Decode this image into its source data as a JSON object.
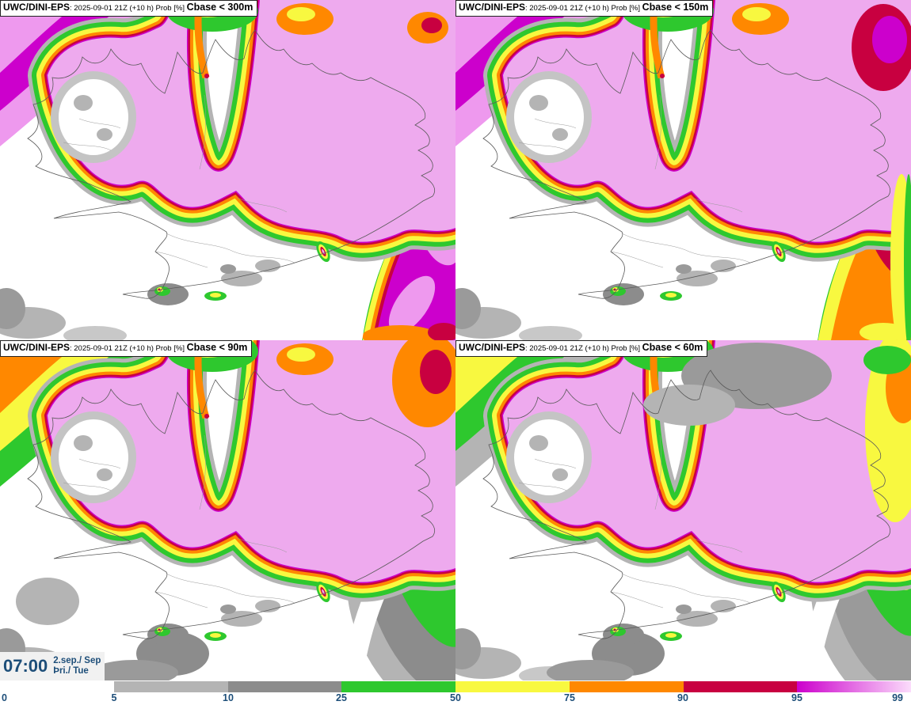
{
  "panels": [
    {
      "model": "UWC/DINI-EPS",
      "run": ": 2025-09-01 21Z (+10 h) Prob [%] ",
      "threshold": "Cbase < 300m",
      "nw": [
        "#ee99ee",
        "#cc00cc",
        "#ee99ee"
      ],
      "se_rings": [
        [
          "#b4b4b4",
          58
        ],
        [
          "#2ec82e",
          46
        ],
        [
          "#f8f840",
          32
        ],
        [
          "#ff8800",
          18
        ],
        [
          "#c80040",
          8
        ]
      ],
      "se_core": "#cc00cc",
      "se_patches": [
        [
          520,
          385,
          42,
          20,
          -55,
          "#ee99ee"
        ],
        [
          556,
          295,
          24,
          42,
          -20,
          "#ee99ee"
        ],
        [
          505,
          425,
          48,
          14,
          0,
          "#ff8800"
        ],
        [
          560,
          420,
          20,
          12,
          0,
          "#c80040"
        ]
      ],
      "overlays": [
        [
          540,
          35,
          26,
          20,
          "#ff8800"
        ],
        [
          545,
          32,
          13,
          10,
          "#c80040"
        ]
      ],
      "extra_gray": []
    },
    {
      "model": "UWC/DINI-EPS",
      "run": ": 2025-09-01 21Z (+10 h) Prob [%] ",
      "threshold": "Cbase < 150m",
      "nw": [
        "#ee99ee",
        "#cc00cc",
        "#ee99ee"
      ],
      "se_rings": [
        [
          "#b4b4b4",
          58
        ],
        [
          "#2ec82e",
          46
        ],
        [
          "#f8f840",
          32
        ]
      ],
      "se_core": "#ff8800",
      "se_patches": [
        [
          556,
          300,
          30,
          60,
          -25,
          "#c80040"
        ],
        [
          566,
          270,
          16,
          36,
          -25,
          "#cc00cc"
        ],
        [
          572,
          250,
          8,
          20,
          -25,
          "#ee99ee"
        ],
        [
          540,
          420,
          30,
          12,
          0,
          "#f8f840"
        ]
      ],
      "overlays": [
        [
          540,
          60,
          40,
          55,
          "#c80040"
        ],
        [
          548,
          50,
          22,
          30,
          "#cc00cc"
        ],
        [
          563,
          330,
          14,
          110,
          "#f8f840"
        ],
        [
          572,
          330,
          6,
          110,
          "#2ec82e"
        ]
      ],
      "extra_gray": []
    },
    {
      "model": "UWC/DINI-EPS",
      "run": ": 2025-09-01 21Z (+10 h) Prob [%] ",
      "threshold": "Cbase < 90m",
      "nw": [
        "#2ec82e",
        "#f8f840",
        "#ff8800"
      ],
      "se_rings": [],
      "se_core": "#ffffff",
      "se_patches": [
        [
          525,
          355,
          75,
          130,
          -25,
          "#b4b4b4"
        ],
        [
          532,
          345,
          55,
          115,
          -25,
          "#8c8c8c"
        ],
        [
          540,
          300,
          38,
          95,
          -25,
          "#2ec82e"
        ],
        [
          548,
          260,
          22,
          60,
          -25,
          "#f8f840"
        ],
        [
          552,
          225,
          12,
          35,
          -25,
          "#ff8800"
        ]
      ],
      "overlays": [
        [
          540,
          50,
          45,
          60,
          "#ff8800"
        ],
        [
          550,
          40,
          20,
          28,
          "#c80040"
        ]
      ],
      "extra_gray": [
        [
          218,
          396,
          46,
          28,
          "#8c8c8c"
        ],
        [
          170,
          420,
          55,
          16,
          "#9a9a9a"
        ],
        [
          60,
          330,
          40,
          30,
          "#b4b4b4"
        ]
      ]
    },
    {
      "model": "UWC/DINI-EPS",
      "run": ": 2025-09-01 21Z (+10 h) Prob [%] ",
      "threshold": "Cbase < 60m",
      "nw": [
        "#b4b4b4",
        "#2ec82e",
        "#f8f840"
      ],
      "se_rings": [],
      "se_core": "#ffffff",
      "se_patches": [
        [
          530,
          360,
          70,
          120,
          -25,
          "#b4b4b4"
        ],
        [
          536,
          350,
          50,
          105,
          -25,
          "#9a9a9a"
        ],
        [
          545,
          300,
          30,
          80,
          -25,
          "#2ec82e"
        ],
        [
          550,
          270,
          17,
          50,
          -25,
          "#f8f840"
        ],
        [
          553,
          245,
          8,
          22,
          -25,
          "#ff8800"
        ]
      ],
      "overlays": [
        [
          555,
          110,
          38,
          120,
          "#f8f840"
        ],
        [
          565,
          60,
          22,
          45,
          "#ff8800"
        ],
        [
          545,
          25,
          30,
          18,
          "#2ec82e"
        ]
      ],
      "extra_gray": [
        [
          218,
          396,
          46,
          28,
          "#8c8c8c"
        ],
        [
          170,
          420,
          55,
          16,
          "#9a9a9a"
        ],
        [
          380,
          45,
          95,
          42,
          "#9a9a9a"
        ],
        [
          295,
          82,
          58,
          26,
          "#b4b4b4"
        ]
      ]
    }
  ],
  "clock": {
    "time": "07:00",
    "date": "2.sep./ Sep",
    "day": "Þri./ Tue"
  },
  "colorbar": {
    "labels": [
      "0",
      "5",
      "10",
      "25",
      "50",
      "75",
      "90",
      "95",
      "99"
    ],
    "segments": [
      {
        "range": "5-10",
        "color": "#b4b4b4"
      },
      {
        "range": "10-25",
        "color": "#8c8c8c"
      },
      {
        "range": "25-50",
        "color": "#2ec82e"
      },
      {
        "range": "50-75",
        "color": "#f8f840"
      },
      {
        "range": "75-90",
        "color": "#ff8800"
      },
      {
        "range": "90-95",
        "color": "#c80040"
      },
      {
        "range": "95-99",
        "color": "#cc00cc",
        "gradient_to": "#fbdcfb"
      }
    ]
  },
  "colors": {
    "prob_high_fill": "#eeaaee",
    "magenta": "#cc00cc",
    "crimson": "#c80040",
    "orange": "#ff8800",
    "yellow": "#f8f840",
    "green": "#2ec82e",
    "gray_light": "#b4b4b4",
    "gray_dark": "#8c8c8c",
    "label_navy": "#1d4e79",
    "coastline": "#5a5a5a"
  }
}
